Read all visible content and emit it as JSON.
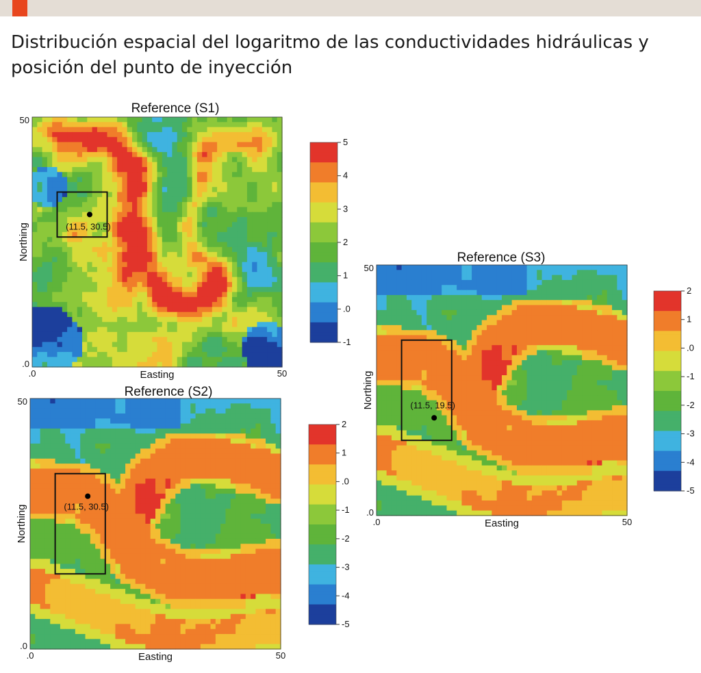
{
  "header": {
    "title": "Distribución espacial del logaritmo de las conductividades hidráulicas y posición del punto de inyección",
    "accent_color": "#e8461e",
    "bar_color": "#e4ddd5"
  },
  "colormap": [
    "#1c3f9c",
    "#2a7fd0",
    "#3fb3e0",
    "#45b06a",
    "#5fb43a",
    "#8cc83a",
    "#d6dc3a",
    "#f3bd33",
    "#f07d2a",
    "#e2342b"
  ],
  "chart_data": [
    {
      "id": "S1",
      "type": "heatmap",
      "title": "Reference (S1)",
      "xlabel": "Easting",
      "ylabel": "Northing",
      "xlim": [
        0,
        50
      ],
      "ylim": [
        0,
        50
      ],
      "x_ticks": [
        ".0",
        "50"
      ],
      "y_ticks": [
        ".0",
        "50"
      ],
      "colorbar": {
        "min": -1,
        "max": 5,
        "ticks": [
          "5",
          "4",
          "3",
          "2",
          "1",
          ".0",
          "-1"
        ]
      },
      "injection_point": {
        "x": 11.5,
        "y": 30.5,
        "label": "(11.5, 30.5)"
      },
      "box": {
        "x0": 5,
        "x1": 15,
        "y0": 26,
        "y1": 35
      }
    },
    {
      "id": "S2",
      "type": "heatmap",
      "title": "Reference (S2)",
      "xlabel": "Easting",
      "ylabel": "Northing",
      "xlim": [
        0,
        50
      ],
      "ylim": [
        0,
        50
      ],
      "x_ticks": [
        ".0",
        "50"
      ],
      "y_ticks": [
        ".0",
        "50"
      ],
      "colorbar": {
        "min": -5,
        "max": 2,
        "ticks": [
          "2",
          "1",
          ".0",
          "-1",
          "-2",
          "-3",
          "-4",
          "-5"
        ]
      },
      "injection_point": {
        "x": 11.5,
        "y": 30.5,
        "label": "(11.5, 30.5)"
      },
      "box": {
        "x0": 5,
        "x1": 15,
        "y0": 15,
        "y1": 35
      }
    },
    {
      "id": "S3",
      "type": "heatmap",
      "title": "Reference (S3)",
      "xlabel": "Easting",
      "ylabel": "Northing",
      "xlim": [
        0,
        50
      ],
      "ylim": [
        0,
        50
      ],
      "x_ticks": [
        ".0",
        "50"
      ],
      "y_ticks": [
        ".0",
        "50"
      ],
      "colorbar": {
        "min": -5,
        "max": 2,
        "ticks": [
          "2",
          "1",
          ".0",
          "-1",
          "-2",
          "-3",
          "-4",
          "-5"
        ]
      },
      "injection_point": {
        "x": 11.5,
        "y": 19.5,
        "label": "(11.5, 19.5)"
      },
      "box": {
        "x0": 5,
        "x1": 15,
        "y0": 15,
        "y1": 35
      }
    }
  ]
}
